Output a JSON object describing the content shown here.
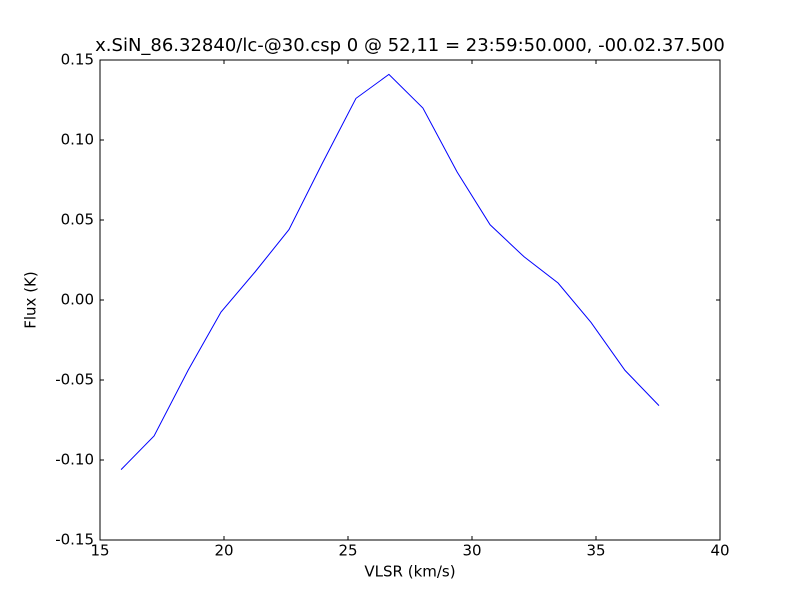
{
  "chart_data": {
    "type": "line",
    "title": "x.SiN_86.32840/lc-@30.csp 0 @ 52,11 = 23:59:50.000, -00.02.37.500",
    "x_label": "VLSR (km/s)",
    "y_label": "Flux (K)",
    "x": [
      15.85,
      17.18,
      18.55,
      19.88,
      21.25,
      22.62,
      23.95,
      25.32,
      26.65,
      28.02,
      29.4,
      30.73,
      32.1,
      33.47,
      34.8,
      36.17,
      37.54
    ],
    "series": [
      {
        "color": "#0000ff",
        "values": [
          -0.106,
          -0.085,
          -0.044,
          -0.0075,
          0.0175,
          0.044,
          0.085,
          0.126,
          0.141,
          0.12,
          0.08,
          0.047,
          0.027,
          0.0106,
          -0.014,
          -0.044,
          -0.066
        ]
      }
    ],
    "xlim": [
      15,
      40
    ],
    "xticks": [
      15,
      20,
      25,
      30,
      35,
      40
    ],
    "ylim": [
      -0.15,
      0.15
    ],
    "yticks": [
      {
        "value": -0.15,
        "label": "-0.15"
      },
      {
        "value": -0.1,
        "label": "-0.10"
      },
      {
        "value": -0.05,
        "label": "-0.05"
      },
      {
        "value": 0,
        "label": "0.00"
      },
      {
        "value": 0.05,
        "label": "0.05"
      },
      {
        "value": 0.1,
        "label": "0.10"
      },
      {
        "value": 0.15,
        "label": "0.15"
      }
    ],
    "grid": false
  }
}
